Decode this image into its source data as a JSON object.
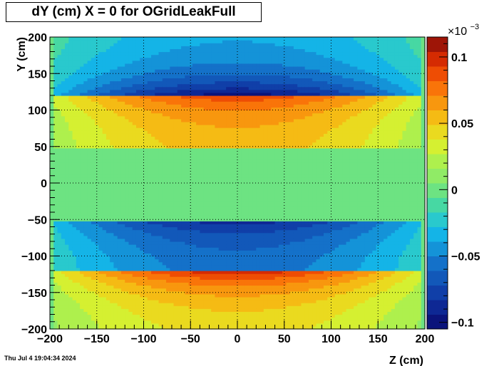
{
  "title": "dY (cm) X = 0 for OGridLeakFull",
  "timestamp": "Thu Jul  4 19:04:34 2024",
  "chart_data": {
    "type": "heatmap",
    "title": "dY (cm) X = 0 for OGridLeakFull",
    "xlabel": "Z (cm)",
    "ylabel": "Y (cm)",
    "xlim": [
      -200,
      200
    ],
    "ylim": [
      -200,
      200
    ],
    "x_ticks": [
      -200,
      -150,
      -100,
      -50,
      0,
      50,
      100,
      150,
      200
    ],
    "y_ticks": [
      -200,
      -150,
      -100,
      -50,
      0,
      50,
      100,
      150,
      200
    ],
    "x_tick_labels": [
      "−200",
      "−150",
      "−100",
      "−50",
      "0",
      "50",
      "100",
      "150",
      "200"
    ],
    "y_tick_labels": [
      "−200",
      "−150",
      "−100",
      "−50",
      "0",
      "50",
      "100",
      "150",
      "200"
    ],
    "grid": true,
    "colorbar": {
      "min": -0.105,
      "max": 0.115,
      "exponent_label": "×10",
      "exponent_power": "−3",
      "ticks": [
        0.1,
        0.05,
        0,
        -0.05,
        -0.1
      ],
      "tick_labels": [
        "0.1",
        "0.05",
        "0",
        "−0.05",
        "−0.1"
      ]
    },
    "field_description": {
      "data_z_extent": [
        -195,
        195
      ],
      "bands": [
        {
          "y_range": [
            120,
            200
          ],
          "edge_y": 120,
          "edge_value": -0.1,
          "far_value": -0.03
        },
        {
          "y_range": [
            50,
            120
          ],
          "edge_y": 120,
          "edge_value": 0.09,
          "far_value": 0.05
        },
        {
          "y_range": [
            -50,
            50
          ],
          "edge_y": 0,
          "edge_value": 0,
          "far_value": 0
        },
        {
          "y_range": [
            -120,
            -50
          ],
          "edge_y": -50,
          "edge_value": -0.09,
          "far_value": -0.05
        },
        {
          "y_range": [
            -200,
            -120
          ],
          "edge_y": -120,
          "edge_value": 0.1,
          "far_value": 0.035
        }
      ]
    }
  }
}
